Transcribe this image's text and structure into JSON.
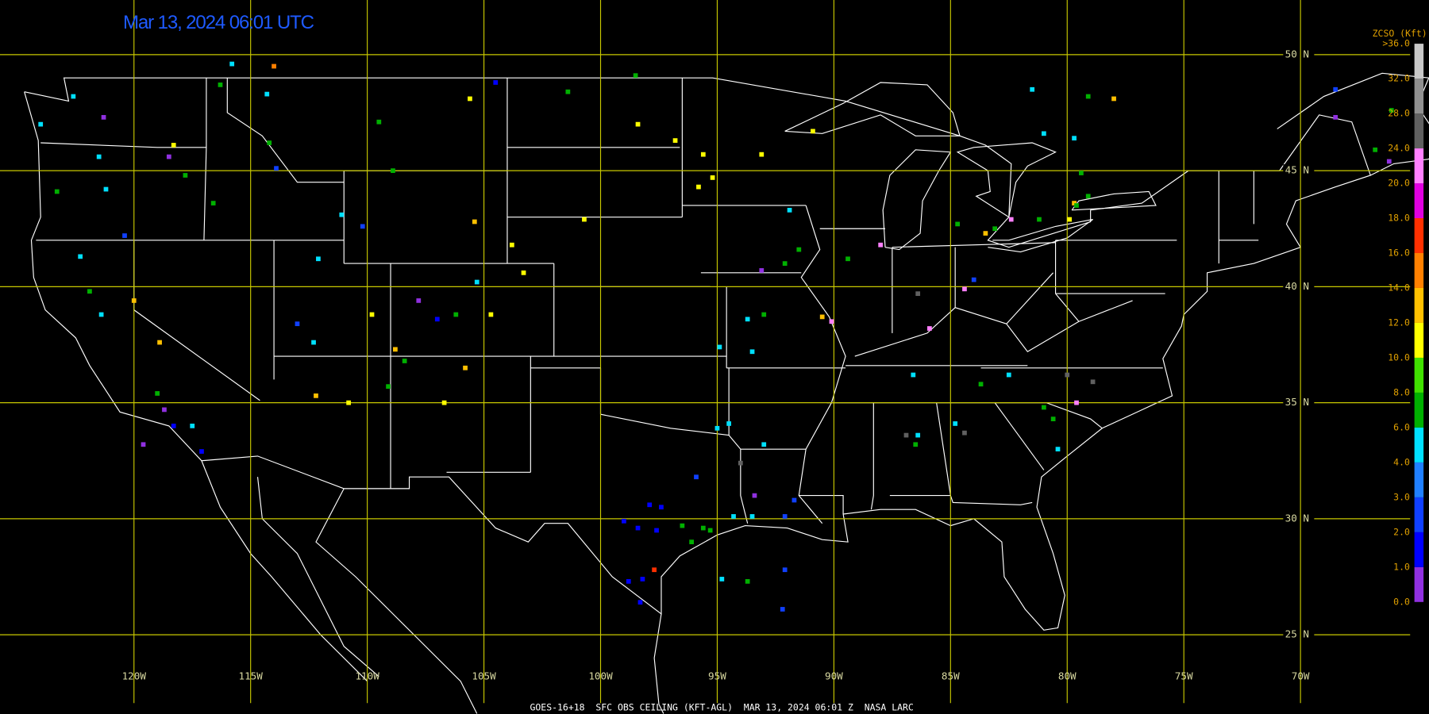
{
  "header": {
    "title": "Mar 13, 2024 06:01 UTC"
  },
  "footer": "GOES-16+18  SFC OBS CEILING (KFT-AGL)  MAR 13, 2024 06:01 Z  NASA LARC",
  "map": {
    "grid_color": "#c8c800",
    "lat_ticks": [
      {
        "value": 50,
        "label": "50 N"
      },
      {
        "value": 45,
        "label": "45 N"
      },
      {
        "value": 40,
        "label": "40 N"
      },
      {
        "value": 35,
        "label": "35 N"
      },
      {
        "value": 30,
        "label": "30 N"
      },
      {
        "value": 25,
        "label": "25 N"
      }
    ],
    "lon_ticks": [
      {
        "value": -120,
        "label": "120W"
      },
      {
        "value": -115,
        "label": "115W"
      },
      {
        "value": -110,
        "label": "110W"
      },
      {
        "value": -105,
        "label": "105W"
      },
      {
        "value": -100,
        "label": "100W"
      },
      {
        "value": -95,
        "label": "95W"
      },
      {
        "value": -90,
        "label": "90W"
      },
      {
        "value": -85,
        "label": "85W"
      },
      {
        "value": -80,
        "label": "80W"
      },
      {
        "value": -75,
        "label": "75W"
      },
      {
        "value": -70,
        "label": "70W"
      }
    ],
    "stations": [
      {
        "lon": -122.6,
        "lat": 48.2,
        "ceiling": 4.5
      },
      {
        "lon": -121.3,
        "lat": 47.3,
        "ceiling": 0.5
      },
      {
        "lon": -124.0,
        "lat": 47.0,
        "ceiling": 5
      },
      {
        "lon": -121.5,
        "lat": 45.6,
        "ceiling": 5
      },
      {
        "lon": -121.2,
        "lat": 44.2,
        "ceiling": 4.5
      },
      {
        "lon": -123.3,
        "lat": 44.1,
        "ceiling": 7
      },
      {
        "lon": -117.8,
        "lat": 44.8,
        "ceiling": 7
      },
      {
        "lon": -118.5,
        "lat": 45.6,
        "ceiling": 0.5
      },
      {
        "lon": -118.3,
        "lat": 46.1,
        "ceiling": 11
      },
      {
        "lon": -116.6,
        "lat": 43.6,
        "ceiling": 7
      },
      {
        "lon": -122.3,
        "lat": 41.3,
        "ceiling": 4.5
      },
      {
        "lon": -120.4,
        "lat": 42.2,
        "ceiling": 2.5
      },
      {
        "lon": -121.9,
        "lat": 39.8,
        "ceiling": 7
      },
      {
        "lon": -121.4,
        "lat": 38.8,
        "ceiling": 4.5
      },
      {
        "lon": -120.0,
        "lat": 39.4,
        "ceiling": 13
      },
      {
        "lon": -118.9,
        "lat": 37.6,
        "ceiling": 13
      },
      {
        "lon": -119.0,
        "lat": 35.4,
        "ceiling": 7
      },
      {
        "lon": -118.7,
        "lat": 34.7,
        "ceiling": 0.5
      },
      {
        "lon": -118.3,
        "lat": 34.0,
        "ceiling": 1.5
      },
      {
        "lon": -117.5,
        "lat": 34.0,
        "ceiling": 5
      },
      {
        "lon": -117.1,
        "lat": 32.9,
        "ceiling": 1.5
      },
      {
        "lon": -119.6,
        "lat": 33.2,
        "ceiling": 0.5
      },
      {
        "lon": -114.0,
        "lat": 49.5,
        "ceiling": 14.5
      },
      {
        "lon": -115.8,
        "lat": 49.6,
        "ceiling": 5
      },
      {
        "lon": -116.3,
        "lat": 48.7,
        "ceiling": 7
      },
      {
        "lon": -114.3,
        "lat": 48.3,
        "ceiling": 5
      },
      {
        "lon": -114.2,
        "lat": 46.2,
        "ceiling": 7
      },
      {
        "lon": -113.9,
        "lat": 45.1,
        "ceiling": 2.5
      },
      {
        "lon": -109.5,
        "lat": 47.1,
        "ceiling": 7
      },
      {
        "lon": -105.6,
        "lat": 48.1,
        "ceiling": 11
      },
      {
        "lon": -104.5,
        "lat": 48.8,
        "ceiling": 1.5
      },
      {
        "lon": -101.4,
        "lat": 48.4,
        "ceiling": 7
      },
      {
        "lon": -98.5,
        "lat": 49.1,
        "ceiling": 7
      },
      {
        "lon": -98.4,
        "lat": 47.0,
        "ceiling": 11
      },
      {
        "lon": -96.8,
        "lat": 46.3,
        "ceiling": 11
      },
      {
        "lon": -95.6,
        "lat": 45.7,
        "ceiling": 11
      },
      {
        "lon": -95.2,
        "lat": 44.7,
        "ceiling": 11
      },
      {
        "lon": -95.8,
        "lat": 44.3,
        "ceiling": 11
      },
      {
        "lon": -93.1,
        "lat": 45.7,
        "ceiling": 11
      },
      {
        "lon": -90.9,
        "lat": 46.7,
        "ceiling": 11
      },
      {
        "lon": -100.7,
        "lat": 42.9,
        "ceiling": 11
      },
      {
        "lon": -105.4,
        "lat": 42.8,
        "ceiling": 13
      },
      {
        "lon": -108.9,
        "lat": 45.0,
        "ceiling": 7
      },
      {
        "lon": -110.2,
        "lat": 42.6,
        "ceiling": 2.5
      },
      {
        "lon": -111.1,
        "lat": 43.1,
        "ceiling": 4.5
      },
      {
        "lon": -112.1,
        "lat": 41.2,
        "ceiling": 5
      },
      {
        "lon": -113.0,
        "lat": 38.4,
        "ceiling": 2.5
      },
      {
        "lon": -112.3,
        "lat": 37.6,
        "ceiling": 5
      },
      {
        "lon": -109.8,
        "lat": 38.8,
        "ceiling": 11
      },
      {
        "lon": -107.8,
        "lat": 39.4,
        "ceiling": 0.5
      },
      {
        "lon": -107.0,
        "lat": 38.6,
        "ceiling": 1.5
      },
      {
        "lon": -106.2,
        "lat": 38.8,
        "ceiling": 7
      },
      {
        "lon": -105.3,
        "lat": 40.2,
        "ceiling": 5
      },
      {
        "lon": -104.7,
        "lat": 38.8,
        "ceiling": 11
      },
      {
        "lon": -103.3,
        "lat": 40.6,
        "ceiling": 11
      },
      {
        "lon": -103.8,
        "lat": 41.8,
        "ceiling": 11
      },
      {
        "lon": -108.8,
        "lat": 37.3,
        "ceiling": 13
      },
      {
        "lon": -108.4,
        "lat": 36.8,
        "ceiling": 7
      },
      {
        "lon": -110.8,
        "lat": 35.0,
        "ceiling": 11
      },
      {
        "lon": -112.2,
        "lat": 35.3,
        "ceiling": 13
      },
      {
        "lon": -106.7,
        "lat": 35.0,
        "ceiling": 11
      },
      {
        "lon": -105.8,
        "lat": 36.5,
        "ceiling": 13
      },
      {
        "lon": -109.1,
        "lat": 35.7,
        "ceiling": 7
      },
      {
        "lon": -91.9,
        "lat": 43.3,
        "ceiling": 4.5
      },
      {
        "lon": -91.5,
        "lat": 41.6,
        "ceiling": 7
      },
      {
        "lon": -93.1,
        "lat": 40.7,
        "ceiling": 0.5
      },
      {
        "lon": -92.1,
        "lat": 41.0,
        "ceiling": 7
      },
      {
        "lon": -90.5,
        "lat": 38.7,
        "ceiling": 13
      },
      {
        "lon": -90.1,
        "lat": 38.5,
        "ceiling": 21
      },
      {
        "lon": -93.5,
        "lat": 37.2,
        "ceiling": 5
      },
      {
        "lon": -93.7,
        "lat": 38.6,
        "ceiling": 4.5
      },
      {
        "lon": -93.0,
        "lat": 38.8,
        "ceiling": 7
      },
      {
        "lon": -94.9,
        "lat": 37.4,
        "ceiling": 4.5
      },
      {
        "lon": -89.4,
        "lat": 41.2,
        "ceiling": 7
      },
      {
        "lon": -88.0,
        "lat": 41.8,
        "ceiling": 21
      },
      {
        "lon": -86.4,
        "lat": 39.7,
        "ceiling": 26
      },
      {
        "lon": -84.4,
        "lat": 39.9,
        "ceiling": 21
      },
      {
        "lon": -84.0,
        "lat": 40.3,
        "ceiling": 2.5
      },
      {
        "lon": -85.9,
        "lat": 38.2,
        "ceiling": 21
      },
      {
        "lon": -84.7,
        "lat": 42.7,
        "ceiling": 7
      },
      {
        "lon": -83.5,
        "lat": 42.3,
        "ceiling": 13
      },
      {
        "lon": -83.1,
        "lat": 42.5,
        "ceiling": 7
      },
      {
        "lon": -82.4,
        "lat": 42.9,
        "ceiling": 21
      },
      {
        "lon": -81.2,
        "lat": 42.9,
        "ceiling": 7
      },
      {
        "lon": -79.7,
        "lat": 43.6,
        "ceiling": 13
      },
      {
        "lon": -79.6,
        "lat": 43.5,
        "ceiling": 7
      },
      {
        "lon": -79.1,
        "lat": 43.9,
        "ceiling": 7
      },
      {
        "lon": -79.4,
        "lat": 44.9,
        "ceiling": 7
      },
      {
        "lon": -79.9,
        "lat": 42.9,
        "ceiling": 11
      },
      {
        "lon": -81.5,
        "lat": 48.5,
        "ceiling": 4.5
      },
      {
        "lon": -79.1,
        "lat": 48.2,
        "ceiling": 7
      },
      {
        "lon": -78.0,
        "lat": 48.1,
        "ceiling": 13
      },
      {
        "lon": -81.0,
        "lat": 46.6,
        "ceiling": 4.5
      },
      {
        "lon": -79.7,
        "lat": 46.4,
        "ceiling": 4.5
      },
      {
        "lon": -68.5,
        "lat": 48.5,
        "ceiling": 2.5
      },
      {
        "lon": -68.5,
        "lat": 47.3,
        "ceiling": 0.5
      },
      {
        "lon": -66.1,
        "lat": 47.6,
        "ceiling": 7
      },
      {
        "lon": -66.8,
        "lat": 45.9,
        "ceiling": 7
      },
      {
        "lon": -66.2,
        "lat": 45.4,
        "ceiling": 0.5
      },
      {
        "lon": -86.6,
        "lat": 36.2,
        "ceiling": 4.5
      },
      {
        "lon": -82.5,
        "lat": 36.2,
        "ceiling": 4.5
      },
      {
        "lon": -83.7,
        "lat": 35.8,
        "ceiling": 7
      },
      {
        "lon": -78.9,
        "lat": 35.9,
        "ceiling": 26
      },
      {
        "lon": -80.0,
        "lat": 36.2,
        "ceiling": 26
      },
      {
        "lon": -79.6,
        "lat": 35.0,
        "ceiling": 21
      },
      {
        "lon": -81.0,
        "lat": 34.8,
        "ceiling": 7
      },
      {
        "lon": -80.6,
        "lat": 34.3,
        "ceiling": 7
      },
      {
        "lon": -80.4,
        "lat": 33.0,
        "ceiling": 5
      },
      {
        "lon": -84.8,
        "lat": 34.1,
        "ceiling": 4.5
      },
      {
        "lon": -84.4,
        "lat": 33.7,
        "ceiling": 26
      },
      {
        "lon": -86.4,
        "lat": 33.6,
        "ceiling": 4.5
      },
      {
        "lon": -86.5,
        "lat": 33.2,
        "ceiling": 7
      },
      {
        "lon": -86.9,
        "lat": 33.6,
        "ceiling": 26
      },
      {
        "lon": -93.0,
        "lat": 33.2,
        "ceiling": 5
      },
      {
        "lon": -94.0,
        "lat": 32.4,
        "ceiling": 26
      },
      {
        "lon": -95.0,
        "lat": 33.9,
        "ceiling": 5
      },
      {
        "lon": -94.5,
        "lat": 34.1,
        "ceiling": 4.5
      },
      {
        "lon": -95.9,
        "lat": 31.8,
        "ceiling": 2.5
      },
      {
        "lon": -93.4,
        "lat": 31.0,
        "ceiling": 0.5
      },
      {
        "lon": -91.7,
        "lat": 30.8,
        "ceiling": 2.5
      },
      {
        "lon": -94.3,
        "lat": 30.1,
        "ceiling": 5
      },
      {
        "lon": -93.5,
        "lat": 30.1,
        "ceiling": 5
      },
      {
        "lon": -92.1,
        "lat": 30.1,
        "ceiling": 2.5
      },
      {
        "lon": -97.9,
        "lat": 30.6,
        "ceiling": 1.5
      },
      {
        "lon": -99.0,
        "lat": 29.9,
        "ceiling": 1.5
      },
      {
        "lon": -98.4,
        "lat": 29.6,
        "ceiling": 1.5
      },
      {
        "lon": -97.6,
        "lat": 29.5,
        "ceiling": 1.5
      },
      {
        "lon": -96.5,
        "lat": 29.7,
        "ceiling": 7
      },
      {
        "lon": -95.6,
        "lat": 29.6,
        "ceiling": 7
      },
      {
        "lon": -95.3,
        "lat": 29.5,
        "ceiling": 7
      },
      {
        "lon": -96.1,
        "lat": 29.0,
        "ceiling": 7
      },
      {
        "lon": -97.7,
        "lat": 27.8,
        "ceiling": 17
      },
      {
        "lon": -98.2,
        "lat": 27.4,
        "ceiling": 1.5
      },
      {
        "lon": -98.8,
        "lat": 27.3,
        "ceiling": 1.5
      },
      {
        "lon": -98.3,
        "lat": 26.4,
        "ceiling": 1.5
      },
      {
        "lon": -94.8,
        "lat": 27.4,
        "ceiling": 4.5
      },
      {
        "lon": -93.7,
        "lat": 27.3,
        "ceiling": 7
      },
      {
        "lon": -92.1,
        "lat": 27.8,
        "ceiling": 2.5
      },
      {
        "lon": -92.2,
        "lat": 26.1,
        "ceiling": 2.5
      },
      {
        "lon": -97.4,
        "lat": 30.5,
        "ceiling": 1.5
      }
    ]
  },
  "colorbar": {
    "title": "ZCSO (Kft)",
    "ticks": [
      {
        "value": 0,
        "label": "0.0"
      },
      {
        "value": 1,
        "label": "1.0"
      },
      {
        "value": 2,
        "label": "2.0"
      },
      {
        "value": 3,
        "label": "3.0"
      },
      {
        "value": 4,
        "label": "4.0"
      },
      {
        "value": 6,
        "label": "6.0"
      },
      {
        "value": 8,
        "label": "8.0"
      },
      {
        "value": 10,
        "label": "10.0"
      },
      {
        "value": 12,
        "label": "12.0"
      },
      {
        "value": 14,
        "label": "14.0"
      },
      {
        "value": 16,
        "label": "16.0"
      },
      {
        "value": 18,
        "label": "18.0"
      },
      {
        "value": 20,
        "label": "20.0"
      },
      {
        "value": 24,
        "label": "24.0"
      },
      {
        "value": 28,
        "label": "28.0"
      },
      {
        "value": 32,
        "label": "32.0"
      },
      {
        "value": 36,
        "label": ">36.0"
      }
    ],
    "colors": [
      "#9030e0",
      "#0000ff",
      "#1040ff",
      "#2080ff",
      "#00e0ff",
      "#00b000",
      "#40e000",
      "#ffff00",
      "#ffc000",
      "#ff8000",
      "#ff3000",
      "#e000e0",
      "#ff80ff",
      "#606060",
      "#909090",
      "#c8c8c8"
    ]
  }
}
